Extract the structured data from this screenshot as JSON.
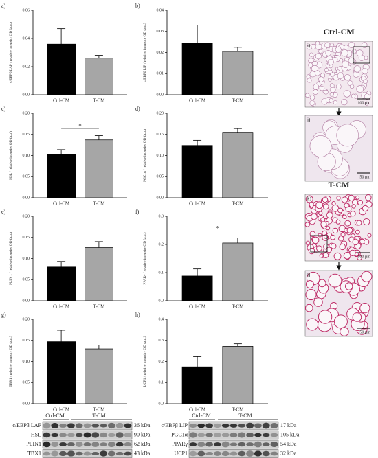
{
  "chart_data": [
    {
      "type": "bar",
      "panel": "a)",
      "ylabel": "c/EBPβ LAP / relative intensity OD (a.u.)",
      "categories": [
        "Ctrl-CM",
        "T-CM"
      ],
      "values": [
        0.036,
        0.026
      ],
      "errors": [
        0.011,
        0.002
      ],
      "colors": [
        "#000000",
        "#a6a6a6"
      ],
      "ylim": [
        0,
        0.06
      ],
      "yticks": [
        {
          "value": 0,
          "label": "0.00"
        },
        {
          "value": 0.02,
          "label": "0.02"
        },
        {
          "value": 0.04,
          "label": "0.04"
        },
        {
          "value": 0.06,
          "label": "0.06"
        }
      ]
    },
    {
      "type": "bar",
      "panel": "b)",
      "ylabel": "c/EBPβ LIP / relative intensity OD (a.u.)",
      "categories": [
        "Ctrl-CM",
        "T-CM"
      ],
      "values": [
        0.0245,
        0.0205
      ],
      "errors": [
        0.0085,
        0.002
      ],
      "colors": [
        "#000000",
        "#a6a6a6"
      ],
      "ylim": [
        0,
        0.04
      ],
      "yticks": [
        {
          "value": 0,
          "label": "0.00"
        },
        0.01,
        0.02,
        0.03,
        0.04
      ]
    },
    {
      "type": "bar",
      "panel": "c)",
      "ylabel": "HSL / relative intensity OD (a.u.)",
      "categories": [
        "Ctrl-CM",
        "T-CM"
      ],
      "values": [
        0.102,
        0.137
      ],
      "errors": [
        0.012,
        0.01
      ],
      "colors": [
        "#000000",
        "#a6a6a6"
      ],
      "ylim": [
        0,
        0.2
      ],
      "yticks": [
        {
          "value": 0,
          "label": "0.00"
        },
        0.05,
        {
          "value": 0.1,
          "label": "0.10"
        },
        0.15,
        {
          "value": 0.2,
          "label": "0.20"
        }
      ],
      "significance": "*"
    },
    {
      "type": "bar",
      "panel": "d)",
      "ylabel": "PGC1α / relative intensity OD (a.u.)",
      "categories": [
        "Ctrl-CM",
        "T-CM"
      ],
      "values": [
        0.124,
        0.155
      ],
      "errors": [
        0.012,
        0.009
      ],
      "colors": [
        "#000000",
        "#a6a6a6"
      ],
      "ylim": [
        0,
        0.2
      ],
      "yticks": [
        {
          "value": 0,
          "label": "0.00"
        },
        0.05,
        {
          "value": 0.1,
          "label": "0.10"
        },
        0.15,
        {
          "value": 0.2,
          "label": "0.20"
        }
      ]
    },
    {
      "type": "bar",
      "panel": "e)",
      "ylabel": "PLIN 1 / relative intensity OD (a.u.)",
      "categories": [
        "Ctrl-CM",
        "T-CM"
      ],
      "values": [
        0.08,
        0.126
      ],
      "errors": [
        0.013,
        0.014
      ],
      "colors": [
        "#000000",
        "#a6a6a6"
      ],
      "ylim": [
        0,
        0.2
      ],
      "yticks": [
        {
          "value": 0,
          "label": "0.00"
        },
        0.05,
        {
          "value": 0.1,
          "label": "0.10"
        },
        0.15,
        {
          "value": 0.2,
          "label": "0.20"
        }
      ]
    },
    {
      "type": "bar",
      "panel": "f)",
      "ylabel": "PPARγ / relative intensity OD (a.u.)",
      "categories": [
        "Ctrl-CM",
        "T-CM"
      ],
      "values": [
        0.088,
        0.205
      ],
      "errors": [
        0.025,
        0.018
      ],
      "colors": [
        "#000000",
        "#a6a6a6"
      ],
      "ylim": [
        0,
        0.3
      ],
      "yticks": [
        {
          "value": 0,
          "label": "0.0"
        },
        0.1,
        0.2,
        0.3
      ],
      "significance": "*"
    },
    {
      "type": "bar",
      "panel": "g)",
      "ylabel": "TBX1 / relative intensity OD (a.u.)",
      "categories": [
        "Ctrl-CM",
        "T-CM"
      ],
      "values": [
        0.147,
        0.13
      ],
      "errors": [
        0.027,
        0.009
      ],
      "colors": [
        "#000000",
        "#a6a6a6"
      ],
      "ylim": [
        0,
        0.2
      ],
      "yticks": [
        {
          "value": 0,
          "label": "0.00"
        },
        0.05,
        {
          "value": 0.1,
          "label": "0.10"
        },
        0.15,
        {
          "value": 0.2,
          "label": "0.20"
        }
      ]
    },
    {
      "type": "bar",
      "panel": "h)",
      "ylabel": "UCP1 / relative intensity OD (a.u.)",
      "categories": [
        "Ctrl-CM",
        "T-CM"
      ],
      "values": [
        0.175,
        0.272
      ],
      "errors": [
        0.048,
        0.012
      ],
      "colors": [
        "#000000",
        "#a6a6a6"
      ],
      "ylim": [
        0,
        0.4
      ],
      "yticks": [
        {
          "value": 0,
          "label": "0.0"
        },
        0.1,
        0.2,
        0.3,
        0.4
      ]
    }
  ],
  "histology": {
    "titles": [
      "Ctrl-CM",
      "T-CM"
    ],
    "panels": [
      {
        "label": "i)",
        "scale": "100 µm"
      },
      {
        "label": "j)",
        "scale": "50 µm"
      },
      {
        "label": "k)",
        "scale": "100 µm"
      },
      {
        "label": "l)",
        "scale": "50 µm"
      }
    ]
  },
  "blots": [
    {
      "groups": [
        "Ctrl-CM",
        "T-CM"
      ],
      "proteins": [
        "c/EBPβ LAP",
        "HSL",
        "PLIN1",
        "TBX1"
      ],
      "sizes": [
        "36 kDa",
        "90 kDa",
        "62 kDa",
        "43 kDa"
      ]
    },
    {
      "groups": [
        "Ctrl-CM",
        "T-CM"
      ],
      "proteins": [
        "c/EBPβ LIP",
        "PGC1α",
        "PPARγ",
        "UCP1"
      ],
      "sizes": [
        "17 kDa",
        "105 kDa",
        "54 kDa",
        "32 kDa"
      ]
    }
  ]
}
